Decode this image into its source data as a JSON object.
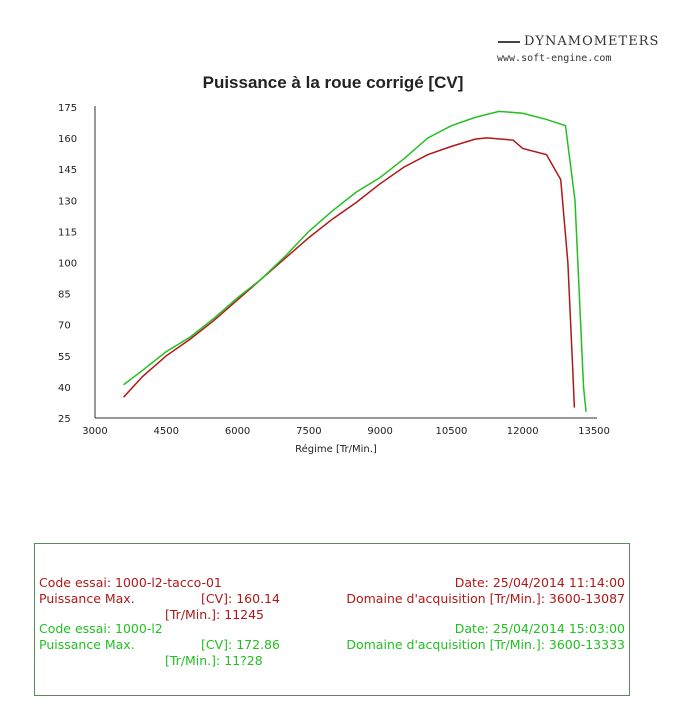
{
  "brand": {
    "name": "DYNAMOMETERS",
    "url": "www.soft-engine.com"
  },
  "chart_data": {
    "type": "line",
    "title": "Puissance à la roue corrigé [CV]",
    "xlabel": "Régime [Tr/Min.]",
    "ylabel": "",
    "xlim": [
      3000,
      13500
    ],
    "ylim": [
      25,
      175
    ],
    "xticks": [
      3000,
      4500,
      6000,
      7500,
      9000,
      10500,
      12000,
      13500
    ],
    "yticks": [
      25,
      40,
      55,
      70,
      85,
      100,
      115,
      130,
      145,
      160,
      175
    ],
    "grid": false,
    "series": [
      {
        "color": "#b01818",
        "x": [
          3600,
          4000,
          4500,
          5000,
          5500,
          6000,
          6500,
          7000,
          7500,
          8000,
          8500,
          9000,
          9500,
          10000,
          10500,
          11000,
          11245,
          11800,
          12000,
          12500,
          12800,
          12950,
          13050,
          13087
        ],
        "y": [
          35,
          45,
          55,
          63,
          72,
          82,
          92,
          102,
          112,
          121,
          129,
          138,
          146,
          152,
          156,
          159.5,
          160.1,
          159,
          155,
          152,
          140,
          100,
          50,
          30
        ]
      },
      {
        "color": "#22c022",
        "x": [
          3600,
          4000,
          4500,
          5000,
          5500,
          6000,
          6500,
          7000,
          7500,
          8000,
          8500,
          9000,
          9500,
          10000,
          10500,
          11000,
          11500,
          12000,
          12500,
          12900,
          13100,
          13200,
          13280,
          13333
        ],
        "y": [
          41,
          48,
          57,
          64,
          73,
          83,
          92,
          103,
          115,
          125,
          134,
          141,
          150,
          160,
          166,
          170,
          172.9,
          172,
          169,
          166,
          130,
          80,
          40,
          28
        ]
      }
    ]
  },
  "info": {
    "run1": {
      "code": "Code essai: 1000-l2-tacco-01",
      "date": "Date: 25/04/2014 11:14:00",
      "pmax_label": "Puissance Max.",
      "cv_label": "[CV]: 160.14",
      "domain": "Domaine d'acquisition [Tr/Min.]: 3600-13087",
      "rpm_label": "[Tr/Min.]: 11245"
    },
    "run2": {
      "code": "Code essai: 1000-l2",
      "date": "Date: 25/04/2014 15:03:00",
      "pmax_label": "Puissance Max.",
      "cv_label": "[CV]: 172.86",
      "domain": "Domaine d'acquisition [Tr/Min.]: 3600-13333",
      "rpm_label": "[Tr/Min.]: 11?28"
    }
  }
}
